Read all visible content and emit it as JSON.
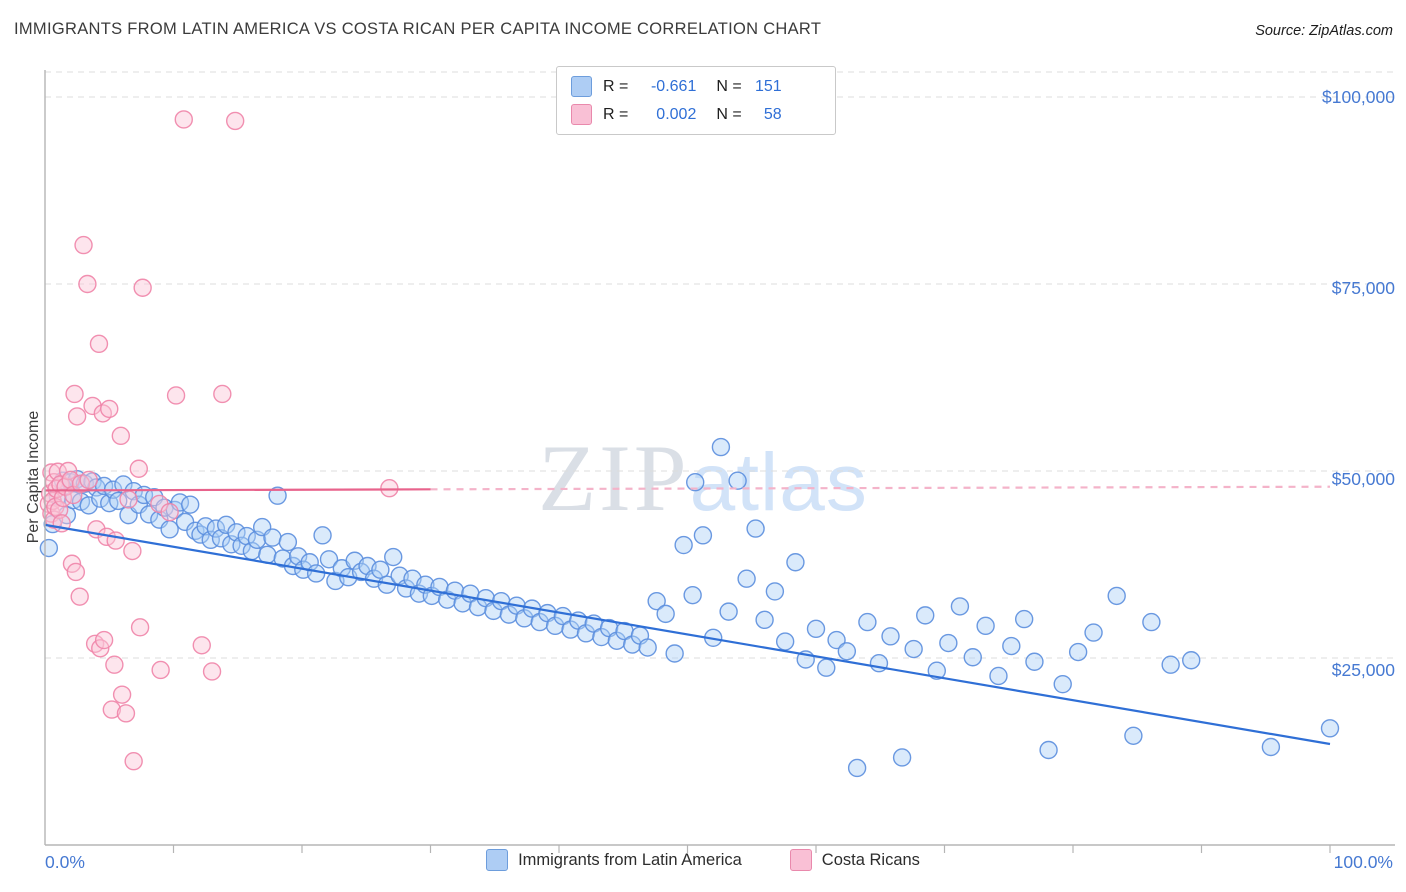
{
  "header": {
    "title": "IMMIGRANTS FROM LATIN AMERICA VS COSTA RICAN PER CAPITA INCOME CORRELATION CHART",
    "source": "Source: ZipAtlas.com"
  },
  "watermark": {
    "part1": "ZIP",
    "part2": "atlas"
  },
  "correlation_legend": {
    "rows": [
      {
        "r_label": "R =",
        "r_value": "-0.661",
        "n_label": "N =",
        "n_value": "151"
      },
      {
        "r_label": "R =",
        "r_value": "0.002",
        "n_label": "N =",
        "n_value": "58"
      }
    ]
  },
  "series_legend": {
    "items": [
      {
        "label": "Immigrants from Latin America"
      },
      {
        "label": "Costa Ricans"
      }
    ]
  },
  "colors": {
    "accent_blue_text": "#4679d2",
    "blue_point_stroke": "#5b8ede",
    "blue_point_fill": "#add0f7",
    "pink_point_stroke": "#ef84a8",
    "pink_point_fill": "#fbc6d8",
    "blue_trend": "#2f6fd6",
    "pink_trend": "#e8638c",
    "pink_trend_dashed": "#f4b3c9",
    "gridline": "#dcdcdc",
    "axis": "#b5b5b5"
  },
  "chart_data": {
    "type": "scatter",
    "title": "IMMIGRANTS FROM LATIN AMERICA VS COSTA RICAN PER CAPITA INCOME CORRELATION CHART",
    "x_axis": {
      "min": 0,
      "max": 100,
      "unit": "%",
      "labels": [
        "0.0%",
        "100.0%"
      ],
      "tick_step": 10
    },
    "y_axis": {
      "label": "Per Capita Income",
      "min": 0,
      "max": 100000,
      "ticks": [
        25000,
        50000,
        75000,
        100000
      ],
      "tick_labels": [
        "$25,000",
        "$50,000",
        "$75,000",
        "$100,000"
      ]
    },
    "grid": "horizontal-dashed",
    "legend_position": "bottom-center",
    "series": [
      {
        "name": "Immigrants from Latin America",
        "R": -0.661,
        "N": 151,
        "color": "#5b8ede",
        "fill": "#add0f7",
        "points": [
          [
            0.3,
            39700
          ],
          [
            0.6,
            42900
          ],
          [
            1.0,
            46600
          ],
          [
            1.4,
            48700
          ],
          [
            1.7,
            44100
          ],
          [
            2.0,
            48500
          ],
          [
            2.2,
            46100
          ],
          [
            2.5,
            48900
          ],
          [
            2.8,
            45900
          ],
          [
            3.1,
            48300
          ],
          [
            3.4,
            45400
          ],
          [
            3.7,
            48600
          ],
          [
            4.0,
            47800
          ],
          [
            4.3,
            46300
          ],
          [
            4.6,
            48000
          ],
          [
            5.0,
            45700
          ],
          [
            5.3,
            47500
          ],
          [
            5.7,
            46000
          ],
          [
            6.1,
            48200
          ],
          [
            6.5,
            44100
          ],
          [
            6.9,
            47300
          ],
          [
            7.3,
            45500
          ],
          [
            7.7,
            46800
          ],
          [
            8.1,
            44200
          ],
          [
            8.5,
            46500
          ],
          [
            8.9,
            43500
          ],
          [
            9.3,
            45100
          ],
          [
            9.7,
            42200
          ],
          [
            10.1,
            44800
          ],
          [
            10.5,
            45800
          ],
          [
            10.9,
            43200
          ],
          [
            11.3,
            45500
          ],
          [
            11.7,
            42000
          ],
          [
            12.1,
            41500
          ],
          [
            12.5,
            42600
          ],
          [
            12.9,
            40800
          ],
          [
            13.3,
            42300
          ],
          [
            13.7,
            41000
          ],
          [
            14.1,
            42800
          ],
          [
            14.5,
            40200
          ],
          [
            14.9,
            41800
          ],
          [
            15.3,
            40000
          ],
          [
            15.7,
            41300
          ],
          [
            16.1,
            39300
          ],
          [
            16.5,
            40800
          ],
          [
            16.9,
            42500
          ],
          [
            17.3,
            38800
          ],
          [
            17.7,
            41100
          ],
          [
            18.1,
            46700
          ],
          [
            18.5,
            38300
          ],
          [
            18.9,
            40500
          ],
          [
            19.3,
            37300
          ],
          [
            19.7,
            38600
          ],
          [
            20.1,
            36800
          ],
          [
            20.6,
            37800
          ],
          [
            21.1,
            36300
          ],
          [
            21.6,
            41400
          ],
          [
            22.1,
            38200
          ],
          [
            22.6,
            35300
          ],
          [
            23.1,
            37000
          ],
          [
            23.6,
            35800
          ],
          [
            24.1,
            38000
          ],
          [
            24.6,
            36500
          ],
          [
            25.1,
            37300
          ],
          [
            25.6,
            35600
          ],
          [
            26.1,
            36800
          ],
          [
            26.6,
            34800
          ],
          [
            27.1,
            38500
          ],
          [
            27.6,
            36000
          ],
          [
            28.1,
            34300
          ],
          [
            28.6,
            35600
          ],
          [
            29.1,
            33600
          ],
          [
            29.6,
            34800
          ],
          [
            30.1,
            33300
          ],
          [
            30.7,
            34500
          ],
          [
            31.3,
            32800
          ],
          [
            31.9,
            34000
          ],
          [
            32.5,
            32300
          ],
          [
            33.1,
            33600
          ],
          [
            33.7,
            31800
          ],
          [
            34.3,
            33000
          ],
          [
            34.9,
            31300
          ],
          [
            35.5,
            32600
          ],
          [
            36.1,
            30800
          ],
          [
            36.7,
            32000
          ],
          [
            37.3,
            30300
          ],
          [
            37.9,
            31600
          ],
          [
            38.5,
            29800
          ],
          [
            39.1,
            31000
          ],
          [
            39.7,
            29300
          ],
          [
            40.3,
            30600
          ],
          [
            40.9,
            28800
          ],
          [
            41.5,
            30000
          ],
          [
            42.1,
            28300
          ],
          [
            42.7,
            29600
          ],
          [
            43.3,
            27800
          ],
          [
            43.9,
            29000
          ],
          [
            44.5,
            27300
          ],
          [
            45.1,
            28600
          ],
          [
            45.7,
            26800
          ],
          [
            46.3,
            28000
          ],
          [
            46.9,
            26400
          ],
          [
            47.6,
            32600
          ],
          [
            48.3,
            30900
          ],
          [
            49.0,
            25600
          ],
          [
            49.7,
            40100
          ],
          [
            50.4,
            33400
          ],
          [
            50.6,
            48500
          ],
          [
            51.2,
            41400
          ],
          [
            52.0,
            27700
          ],
          [
            52.6,
            53200
          ],
          [
            53.2,
            31200
          ],
          [
            53.9,
            48700
          ],
          [
            54.6,
            35600
          ],
          [
            55.3,
            42300
          ],
          [
            56.0,
            30100
          ],
          [
            56.8,
            33900
          ],
          [
            57.6,
            27200
          ],
          [
            58.4,
            37800
          ],
          [
            59.2,
            24800
          ],
          [
            60.0,
            28900
          ],
          [
            60.8,
            23700
          ],
          [
            61.6,
            27400
          ],
          [
            62.4,
            25900
          ],
          [
            63.2,
            10300
          ],
          [
            64.0,
            29800
          ],
          [
            64.9,
            24300
          ],
          [
            65.8,
            27900
          ],
          [
            66.7,
            11700
          ],
          [
            67.6,
            26200
          ],
          [
            68.5,
            30700
          ],
          [
            69.4,
            23300
          ],
          [
            70.3,
            27000
          ],
          [
            71.2,
            31900
          ],
          [
            72.2,
            25100
          ],
          [
            73.2,
            29300
          ],
          [
            74.2,
            22600
          ],
          [
            75.2,
            26600
          ],
          [
            76.2,
            30200
          ],
          [
            77.0,
            24500
          ],
          [
            78.1,
            12700
          ],
          [
            79.2,
            21500
          ],
          [
            80.4,
            25800
          ],
          [
            81.6,
            28400
          ],
          [
            83.4,
            33300
          ],
          [
            84.7,
            14600
          ],
          [
            86.1,
            29800
          ],
          [
            87.6,
            24100
          ],
          [
            89.2,
            24700
          ],
          [
            95.4,
            13100
          ],
          [
            100.0,
            15600
          ]
        ]
      },
      {
        "name": "Costa Ricans",
        "R": 0.002,
        "N": 58,
        "color": "#ef84a8",
        "fill": "#fbc6d8",
        "points": [
          [
            0.3,
            45600
          ],
          [
            0.4,
            47000
          ],
          [
            0.5,
            49800
          ],
          [
            0.5,
            44300
          ],
          [
            0.6,
            46000
          ],
          [
            0.7,
            48500
          ],
          [
            0.7,
            43500
          ],
          [
            0.8,
            45200
          ],
          [
            0.9,
            47600
          ],
          [
            1.0,
            49900
          ],
          [
            1.1,
            44800
          ],
          [
            1.2,
            48200
          ],
          [
            1.3,
            43000
          ],
          [
            1.4,
            46400
          ],
          [
            1.6,
            47900
          ],
          [
            1.8,
            50000
          ],
          [
            2.0,
            48800
          ],
          [
            2.1,
            37600
          ],
          [
            2.2,
            46800
          ],
          [
            2.3,
            60300
          ],
          [
            2.4,
            36500
          ],
          [
            2.5,
            57300
          ],
          [
            2.7,
            33200
          ],
          [
            2.8,
            48300
          ],
          [
            3.0,
            80200
          ],
          [
            3.3,
            75000
          ],
          [
            3.4,
            48800
          ],
          [
            3.7,
            58700
          ],
          [
            3.9,
            26900
          ],
          [
            4.0,
            42200
          ],
          [
            4.2,
            67000
          ],
          [
            4.3,
            26300
          ],
          [
            4.5,
            57700
          ],
          [
            4.6,
            27400
          ],
          [
            4.8,
            41200
          ],
          [
            5.0,
            58300
          ],
          [
            5.2,
            18100
          ],
          [
            5.4,
            24100
          ],
          [
            5.5,
            40700
          ],
          [
            5.9,
            54700
          ],
          [
            6.0,
            20100
          ],
          [
            6.3,
            17600
          ],
          [
            6.5,
            46200
          ],
          [
            6.8,
            39300
          ],
          [
            6.9,
            11200
          ],
          [
            7.3,
            50300
          ],
          [
            7.4,
            29100
          ],
          [
            7.6,
            74500
          ],
          [
            8.9,
            45600
          ],
          [
            9.0,
            23400
          ],
          [
            9.7,
            44500
          ],
          [
            10.2,
            60100
          ],
          [
            10.8,
            97000
          ],
          [
            12.2,
            26700
          ],
          [
            13.0,
            23200
          ],
          [
            13.8,
            60300
          ],
          [
            14.8,
            96800
          ],
          [
            26.8,
            47700
          ]
        ]
      }
    ],
    "trend_lines": [
      {
        "series": "Immigrants from Latin America",
        "from": [
          0,
          42800
        ],
        "to": [
          100,
          13500
        ],
        "color": "#2f6fd6",
        "style": "solid"
      },
      {
        "series": "Costa Ricans",
        "from": [
          0,
          47400
        ],
        "to": [
          30,
          47550
        ],
        "color": "#e8638c",
        "style": "solid"
      },
      {
        "series": "Costa Ricans",
        "from": [
          30,
          47550
        ],
        "to": [
          100,
          47900
        ],
        "color": "#f4b3c9",
        "style": "dashed"
      }
    ]
  }
}
